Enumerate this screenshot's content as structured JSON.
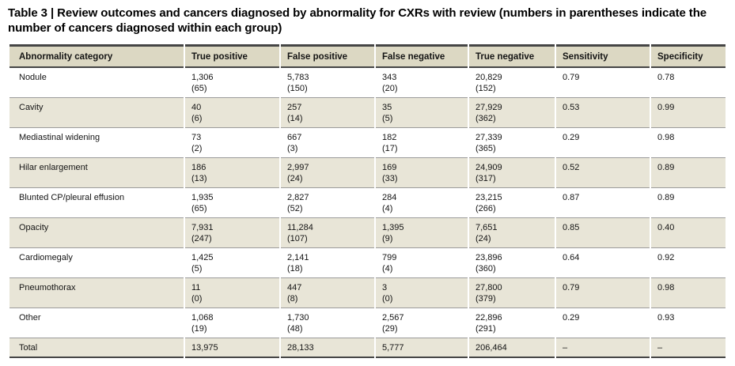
{
  "title": "Table 3 | Review outcomes and cancers diagnosed by abnormality for CXRs with review (numbers in parentheses indicate the number of cancers diagnosed within each group)",
  "colors": {
    "header_bg": "#dcd8c3",
    "shaded_row_bg": "#e8e5d7",
    "rule_dark": "#454545",
    "rule_light": "#9b9b9b",
    "text": "#141414"
  },
  "table": {
    "columns": [
      "Abnormality category",
      "True positive",
      "False positive",
      "False negative",
      "True negative",
      "Sensitivity",
      "Specificity"
    ],
    "rows": [
      {
        "category": "Nodule",
        "shaded": false,
        "cells": [
          [
            "1,306",
            "(65)"
          ],
          [
            "5,783",
            "(150)"
          ],
          [
            "343",
            "(20)"
          ],
          [
            "20,829",
            "(152)"
          ],
          [
            "0.79"
          ],
          [
            "0.78"
          ]
        ]
      },
      {
        "category": "Cavity",
        "shaded": true,
        "cells": [
          [
            "40",
            "(6)"
          ],
          [
            "257",
            "(14)"
          ],
          [
            "35",
            "(5)"
          ],
          [
            "27,929",
            "(362)"
          ],
          [
            "0.53"
          ],
          [
            "0.99"
          ]
        ]
      },
      {
        "category": "Mediastinal widening",
        "shaded": false,
        "cells": [
          [
            "73",
            "(2)"
          ],
          [
            "667",
            "(3)"
          ],
          [
            "182",
            "(17)"
          ],
          [
            "27,339",
            "(365)"
          ],
          [
            "0.29"
          ],
          [
            "0.98"
          ]
        ]
      },
      {
        "category": "Hilar enlargement",
        "shaded": true,
        "cells": [
          [
            "186",
            "(13)"
          ],
          [
            "2,997",
            "(24)"
          ],
          [
            "169",
            "(33)"
          ],
          [
            "24,909",
            "(317)"
          ],
          [
            "0.52"
          ],
          [
            "0.89"
          ]
        ]
      },
      {
        "category": "Blunted CP/pleural effusion",
        "shaded": false,
        "cells": [
          [
            "1,935",
            "(65)"
          ],
          [
            "2,827",
            "(52)"
          ],
          [
            "284",
            "(4)"
          ],
          [
            "23,215",
            "(266)"
          ],
          [
            "0.87"
          ],
          [
            "0.89"
          ]
        ]
      },
      {
        "category": "Opacity",
        "shaded": true,
        "cells": [
          [
            "7,931",
            "(247)"
          ],
          [
            "11,284",
            "(107)"
          ],
          [
            "1,395",
            "(9)"
          ],
          [
            "7,651",
            "(24)"
          ],
          [
            "0.85"
          ],
          [
            "0.40"
          ]
        ]
      },
      {
        "category": "Cardiomegaly",
        "shaded": false,
        "cells": [
          [
            "1,425",
            "(5)"
          ],
          [
            "2,141",
            "(18)"
          ],
          [
            "799",
            "(4)"
          ],
          [
            "23,896",
            "(360)"
          ],
          [
            "0.64"
          ],
          [
            "0.92"
          ]
        ]
      },
      {
        "category": "Pneumothorax",
        "shaded": true,
        "cells": [
          [
            "11",
            "(0)"
          ],
          [
            "447",
            "(8)"
          ],
          [
            "3",
            "(0)"
          ],
          [
            "27,800",
            "(379)"
          ],
          [
            "0.79"
          ],
          [
            "0.98"
          ]
        ]
      },
      {
        "category": "Other",
        "shaded": false,
        "cells": [
          [
            "1,068",
            "(19)"
          ],
          [
            "1,730",
            "(48)"
          ],
          [
            "2,567",
            "(29)"
          ],
          [
            "22,896",
            "(291)"
          ],
          [
            "0.29"
          ],
          [
            "0.93"
          ]
        ]
      },
      {
        "category": "Total",
        "shaded": true,
        "total": true,
        "cells": [
          [
            "13,975"
          ],
          [
            "28,133"
          ],
          [
            "5,777"
          ],
          [
            "206,464"
          ],
          [
            "–"
          ],
          [
            "–"
          ]
        ]
      }
    ]
  }
}
